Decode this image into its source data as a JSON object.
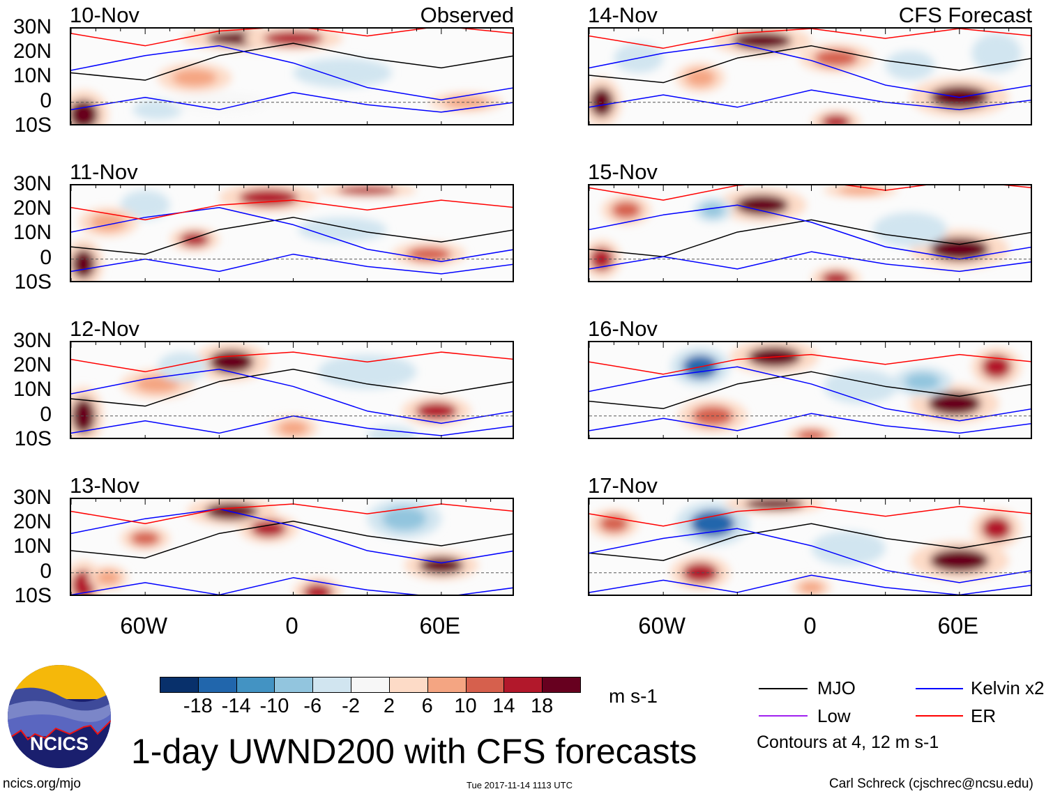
{
  "panels": [
    {
      "date": "10-Nov",
      "tag": "Observed"
    },
    {
      "date": "11-Nov"
    },
    {
      "date": "12-Nov"
    },
    {
      "date": "13-Nov"
    },
    {
      "date": "14-Nov",
      "tag": "CFS Forecast"
    },
    {
      "date": "15-Nov"
    },
    {
      "date": "16-Nov"
    },
    {
      "date": "17-Nov"
    }
  ],
  "lat_labels": [
    "30N",
    "20N",
    "10N",
    "0",
    "10S"
  ],
  "lon_labels": [
    "60W",
    "0",
    "60E"
  ],
  "map_extent": {
    "lon": [
      -90,
      90
    ],
    "lat": [
      -10,
      30
    ]
  },
  "colorbar": {
    "levels": [
      "-18",
      "-14",
      "-10",
      "-6",
      "-2",
      "2",
      "6",
      "10",
      "14",
      "18"
    ],
    "colors": [
      "#08306b",
      "#2166ac",
      "#4393c3",
      "#92c5de",
      "#d1e5f0",
      "#f7f7f7",
      "#fddbc7",
      "#f4a582",
      "#d6604d",
      "#b2182b",
      "#67001f"
    ],
    "units": "m s-1"
  },
  "legend": {
    "items": [
      {
        "label": "MJO",
        "color": "#000000"
      },
      {
        "label": "Kelvin x2",
        "color": "#0000ff"
      },
      {
        "label": "Low",
        "color": "#a020f0"
      },
      {
        "label": "ER",
        "color": "#ff0000"
      }
    ],
    "note": "Contours at 4, 12 m s-1"
  },
  "title": "1-day UWND200 with CFS forecasts",
  "logo_text": "NCICS",
  "url": "ncics.org/mjo",
  "timestamp": "Tue 2017-11-14 1113 UTC",
  "author": "Carl Schreck (cjschrec@ncsu.edu)"
}
